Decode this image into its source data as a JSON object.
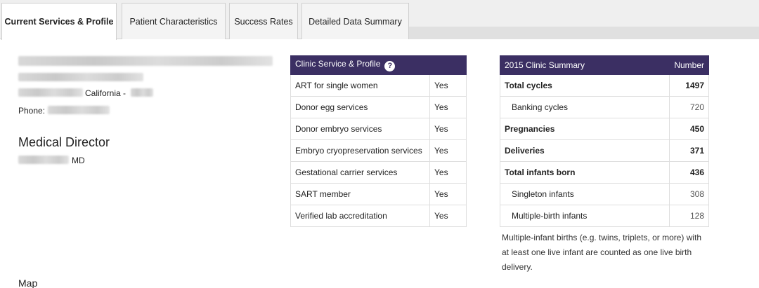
{
  "tabs": [
    {
      "label": "Current Services & Profile",
      "active": true
    },
    {
      "label": "Patient Characteristics",
      "active": false
    },
    {
      "label": "Success Rates",
      "active": false
    },
    {
      "label": "Detailed Data Summary",
      "active": false
    }
  ],
  "profile": {
    "state_text": "California -",
    "phone_label": "Phone:",
    "director_heading": "Medical Director",
    "director_suffix": "MD",
    "map_label": "Map"
  },
  "services": {
    "header": "Clinic Service & Profile",
    "rows": [
      {
        "label": "ART for single women",
        "value": "Yes"
      },
      {
        "label": "Donor egg services",
        "value": "Yes"
      },
      {
        "label": "Donor embryo services",
        "value": "Yes"
      },
      {
        "label": "Embryo cryopreservation services",
        "value": "Yes"
      },
      {
        "label": "Gestational carrier services",
        "value": "Yes"
      },
      {
        "label": "SART member",
        "value": "Yes"
      },
      {
        "label": "Verified lab accreditation",
        "value": "Yes"
      }
    ]
  },
  "summary": {
    "header_label": "2015 Clinic Summary",
    "header_number": "Number",
    "rows": [
      {
        "label": "Total cycles",
        "value": "1497"
      },
      {
        "label": "Banking cycles",
        "value": "720"
      },
      {
        "label": "Pregnancies",
        "value": "450"
      },
      {
        "label": "Deliveries",
        "value": "371"
      },
      {
        "label": "Total infants born",
        "value": "436"
      },
      {
        "label": "Singleton infants",
        "value": "308"
      },
      {
        "label": "Multiple-birth infants",
        "value": "128"
      }
    ],
    "note": "Multiple-infant births (e.g. twins, triplets, or more) with at least one live infant are counted as one live birth delivery."
  },
  "colors": {
    "header_bg": "#3b2f63"
  }
}
